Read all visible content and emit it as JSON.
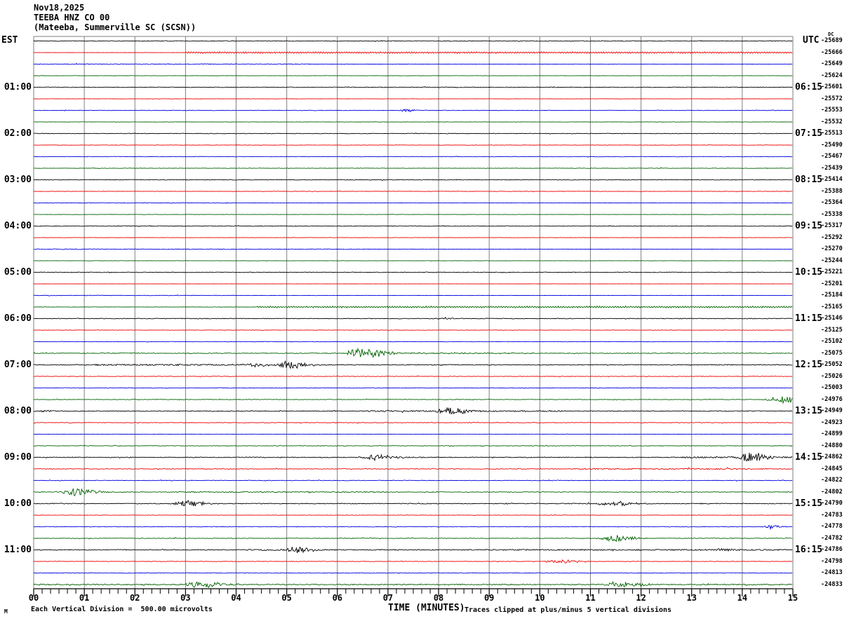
{
  "header": {
    "date": "Nov18,2025",
    "station": "TEEBA HNZ CO 00",
    "location": "(Mateeba, Summerville SC (SCSN))"
  },
  "axes": {
    "left_label": "EST",
    "right_label": "UTC",
    "dc_label": "DC",
    "left_times": [
      "01:00",
      "02:00",
      "03:00",
      "04:00",
      "05:00",
      "06:00",
      "07:00",
      "08:00",
      "09:00",
      "10:00",
      "11:00"
    ],
    "right_times": [
      "06:15",
      "07:15",
      "08:15",
      "09:15",
      "10:15",
      "11:15",
      "12:15",
      "13:15",
      "14:15",
      "15:15",
      "16:15"
    ],
    "x_ticks": [
      "00",
      "01",
      "02",
      "03",
      "04",
      "05",
      "06",
      "07",
      "08",
      "09",
      "10",
      "11",
      "12",
      "13",
      "14",
      "15"
    ],
    "xlabel": "TIME (MINUTES)"
  },
  "footer": {
    "scale_note": "Each Vertical Division =  500.00 microvolts",
    "clip_note": "Traces clipped at plus/minus 5 vertical divisions",
    "watermark": "M"
  },
  "chart_data": {
    "type": "line",
    "title": "TEEBA HNZ CO 00 (Mateeba, Summerville SC (SCSN)) helicorder Nov18,2025",
    "x_range_minutes": [
      0,
      15
    ],
    "minutes_per_row": 15,
    "rows": 48,
    "first_labeled_row": 4,
    "label_every_n_rows": 4,
    "vertical_division_microvolts": 500.0,
    "clip_divisions": 5,
    "grid": true,
    "grid_color": "#7f7f7f",
    "trace_color_cycle": [
      "#000000",
      "#ee0000",
      "#0000dd",
      "#006400"
    ],
    "traces": [
      {
        "dc": -25689,
        "n": 0.45
      },
      {
        "dc": -25666,
        "n": 0.15,
        "wavy": [
          3.0,
          1.2
        ]
      },
      {
        "dc": -25649,
        "n": 0.2,
        "seg": [
          [
            0,
            5.5,
            0.5
          ]
        ]
      },
      {
        "dc": -25624,
        "n": 0.2
      },
      {
        "dc": -25601,
        "n": 0.4
      },
      {
        "dc": -25572,
        "n": 0.2
      },
      {
        "dc": -25553,
        "n": 0.35,
        "ev": [
          [
            7.35,
            0.15,
            2.2
          ]
        ]
      },
      {
        "dc": -25532,
        "n": 0.25
      },
      {
        "dc": -25513,
        "n": 0.4
      },
      {
        "dc": -25490,
        "n": 0.3
      },
      {
        "dc": -25467,
        "n": 0.35
      },
      {
        "dc": -25439,
        "n": 0.3
      },
      {
        "dc": -25414,
        "n": 0.4
      },
      {
        "dc": -25388,
        "n": 0.3
      },
      {
        "dc": -25364,
        "n": 0.2,
        "seg": [
          [
            0,
            4,
            0.4
          ]
        ]
      },
      {
        "dc": -25338,
        "n": 0.2
      },
      {
        "dc": -25317,
        "n": 0.4
      },
      {
        "dc": -25292,
        "n": 0.25
      },
      {
        "dc": -25270,
        "n": 0.2,
        "seg": [
          [
            0,
            6.5,
            0.45
          ]
        ]
      },
      {
        "dc": -25244,
        "n": 0.25
      },
      {
        "dc": -25221,
        "n": 0.4
      },
      {
        "dc": -25201,
        "n": 0.15
      },
      {
        "dc": -25184,
        "n": 0.2,
        "seg": [
          [
            0,
            4,
            0.4
          ]
        ]
      },
      {
        "dc": -25165,
        "n": 0.25,
        "wavy": [
          4.4,
          1.2
        ]
      },
      {
        "dc": -25146,
        "n": 0.45,
        "ev": [
          [
            8.05,
            0.2,
            1.6
          ]
        ]
      },
      {
        "dc": -25125,
        "n": 0.3
      },
      {
        "dc": -25102,
        "n": 0.3
      },
      {
        "dc": -25075,
        "n": 0.5,
        "seg": [
          [
            6.8,
            9.5,
            0.8
          ]
        ],
        "ev": [
          [
            6.45,
            0.35,
            8
          ]
        ]
      },
      {
        "dc": -25052,
        "n": 0.5,
        "seg": [
          [
            1.2,
            5.4,
            1.0
          ]
        ],
        "ev": [
          [
            4.4,
            0.25,
            2.2
          ],
          [
            5.05,
            0.3,
            5
          ]
        ]
      },
      {
        "dc": -25026,
        "n": 0.4
      },
      {
        "dc": -25003,
        "n": 0.35
      },
      {
        "dc": -24976,
        "n": 0.4,
        "ev": [
          [
            14.75,
            0.3,
            5
          ]
        ]
      },
      {
        "dc": -24949,
        "n": 0.5,
        "seg": [
          [
            0,
            0.4,
            1.2
          ],
          [
            6.6,
            10.5,
            0.9
          ]
        ],
        "ev": [
          [
            8.2,
            0.3,
            5
          ]
        ]
      },
      {
        "dc": -24923,
        "n": 0.4
      },
      {
        "dc": -24899,
        "n": 0.25
      },
      {
        "dc": -24880,
        "n": 0.4
      },
      {
        "dc": -24862,
        "n": 0.5,
        "seg": [
          [
            12.8,
            15,
            0.9
          ]
        ],
        "ev": [
          [
            6.75,
            0.3,
            4
          ],
          [
            14.15,
            0.25,
            7
          ]
        ]
      },
      {
        "dc": -24845,
        "n": 0.45,
        "seg": [
          [
            10.8,
            14.5,
            0.85
          ]
        ]
      },
      {
        "dc": -24822,
        "n": 0.4
      },
      {
        "dc": -24802,
        "n": 0.45,
        "seg": [
          [
            2.8,
            7,
            0.7
          ]
        ],
        "ev": [
          [
            0.78,
            0.35,
            5
          ]
        ]
      },
      {
        "dc": -24790,
        "n": 0.5,
        "seg": [
          [
            10.4,
            12.2,
            0.7
          ]
        ],
        "ev": [
          [
            3.0,
            0.3,
            4
          ],
          [
            11.35,
            0.3,
            4
          ]
        ]
      },
      {
        "dc": -24783,
        "n": 0.3
      },
      {
        "dc": -24778,
        "n": 0.4,
        "ev": [
          [
            14.55,
            0.15,
            3
          ]
        ]
      },
      {
        "dc": -24782,
        "n": 0.4,
        "ev": [
          [
            11.45,
            0.3,
            5
          ]
        ]
      },
      {
        "dc": -24786,
        "n": 0.55,
        "seg": [
          [
            4.2,
            5.6,
            0.9
          ],
          [
            9,
            15,
            0.8
          ]
        ],
        "ev": [
          [
            5.15,
            0.25,
            4.5
          ],
          [
            13.6,
            0.2,
            2
          ]
        ]
      },
      {
        "dc": -24798,
        "n": 0.35,
        "ev": [
          [
            10.35,
            0.35,
            2.3
          ]
        ]
      },
      {
        "dc": -24813,
        "n": 0.4
      },
      {
        "dc": -24833,
        "n": 0.55,
        "seg": [
          [
            0,
            15,
            0.7
          ]
        ],
        "ev": [
          [
            3.3,
            0.4,
            4
          ],
          [
            11.6,
            0.35,
            4
          ]
        ]
      }
    ]
  }
}
